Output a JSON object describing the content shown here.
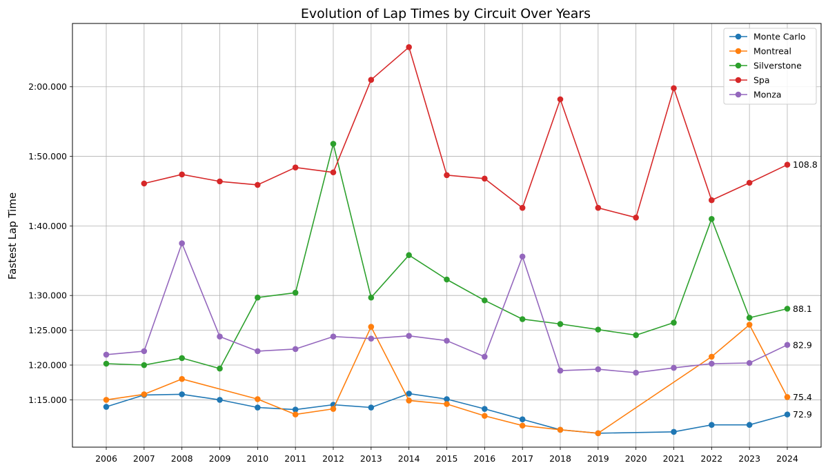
{
  "chart_data": {
    "type": "line",
    "title": "Evolution of Lap Times by Circuit Over Years",
    "xlabel": "",
    "ylabel": "Fastest Lap Time",
    "x": [
      "2006",
      "2007",
      "2008",
      "2009",
      "2010",
      "2011",
      "2012",
      "2013",
      "2014",
      "2015",
      "2016",
      "2017",
      "2018",
      "2019",
      "2020",
      "2021",
      "2022",
      "2023",
      "2024"
    ],
    "ylim": [
      68.2,
      129.1
    ],
    "yticks": [
      {
        "value": 75,
        "label": "1:15.000"
      },
      {
        "value": 80,
        "label": "1:20.000"
      },
      {
        "value": 85,
        "label": "1:25.000"
      },
      {
        "value": 90,
        "label": "1:30.000"
      },
      {
        "value": 100,
        "label": "1:40.000"
      },
      {
        "value": 110,
        "label": "1:50.000"
      },
      {
        "value": 120,
        "label": "2:00.000"
      }
    ],
    "grid": true,
    "legend_position": "top-right",
    "series": [
      {
        "name": "Monte Carlo",
        "color": "#1f77b4",
        "end_label": "72.9",
        "values": [
          74.0,
          75.7,
          75.8,
          75.0,
          73.9,
          73.6,
          74.3,
          73.9,
          75.9,
          75.1,
          73.7,
          72.2,
          70.7,
          70.2,
          null,
          70.4,
          71.4,
          71.4,
          72.9
        ]
      },
      {
        "name": "Montreal",
        "color": "#ff7f0e",
        "end_label": "75.4",
        "values": [
          75.0,
          75.8,
          78.0,
          null,
          75.1,
          72.9,
          73.7,
          85.5,
          74.9,
          74.4,
          72.7,
          71.3,
          70.7,
          70.2,
          null,
          null,
          81.2,
          85.8,
          75.4
        ]
      },
      {
        "name": "Silverstone",
        "color": "#2ca02c",
        "end_label": "88.1",
        "values": [
          80.2,
          80.0,
          81.0,
          79.5,
          89.7,
          90.4,
          111.8,
          89.7,
          95.8,
          92.3,
          89.3,
          86.6,
          85.9,
          85.1,
          84.3,
          86.1,
          101.0,
          86.8,
          88.1
        ]
      },
      {
        "name": "Spa",
        "color": "#d62728",
        "end_label": "108.8",
        "values": [
          null,
          106.1,
          107.4,
          106.4,
          105.9,
          108.4,
          107.7,
          121.0,
          125.7,
          107.3,
          106.8,
          102.6,
          118.2,
          102.6,
          101.2,
          119.8,
          103.7,
          106.2,
          108.8
        ]
      },
      {
        "name": "Monza",
        "color": "#9467bd",
        "end_label": "82.9",
        "values": [
          81.5,
          82.0,
          97.5,
          84.1,
          82.0,
          82.3,
          84.1,
          83.8,
          84.2,
          83.5,
          81.2,
          95.6,
          79.2,
          79.4,
          78.9,
          79.6,
          80.2,
          80.3,
          82.9
        ]
      }
    ]
  }
}
